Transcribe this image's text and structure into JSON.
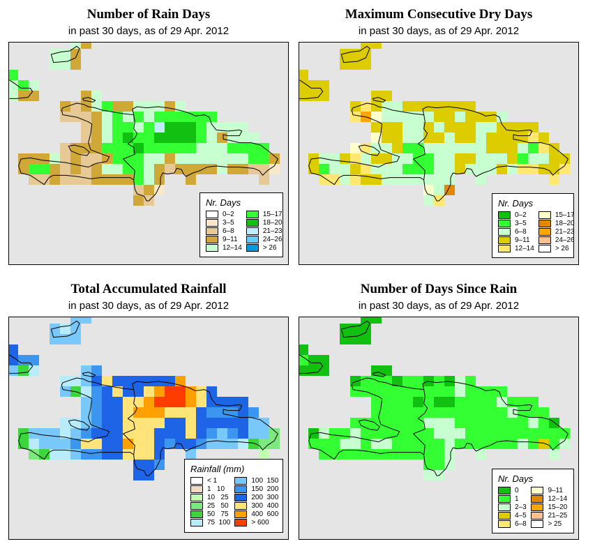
{
  "panels": [
    {
      "title": "Number of Rain Days",
      "subtitle": "in past 30 days, as of  29 Apr. 2012",
      "legend": {
        "title": "Nr. Days",
        "items": [
          {
            "label": "0–2",
            "color": "#ffffff"
          },
          {
            "label": "3–5",
            "color": "#f8e8cc"
          },
          {
            "label": "6–8",
            "color": "#e6c994"
          },
          {
            "label": "9–11",
            "color": "#d0a838"
          },
          {
            "label": "12–14",
            "color": "#c8ffd0"
          },
          {
            "label": "15–17",
            "color": "#33ff33"
          },
          {
            "label": "18–20",
            "color": "#11c011"
          },
          {
            "label": "21–23",
            "color": "#c0ecff"
          },
          {
            "label": "24–26",
            "color": "#66ccff"
          },
          {
            "label": "> 26",
            "color": "#0099dd"
          }
        ]
      },
      "grid": [
        "......43...................",
        "....443....................",
        "....443....................",
        "5..........................",
        "454........................",
        "433....34..................",
        ".....323453344434..........",
        ".....222345454555555.......",
        ".......2345545766654444....",
        ".......23456556666543444...",
        ".....23335556555554445555..",
        ".3334232235554434444444553.",
        ".3553232344554323333433221.",
        "..2232223333543..3......2..",
        "............231............",
        "............32............."
      ]
    },
    {
      "title": "Maximum Consecutive Dry Days",
      "subtitle": "in past 30 days, as of  29 Apr. 2012",
      "legend": {
        "title": "Nr. Days",
        "items": [
          {
            "label": "0–2",
            "color": "#11c011"
          },
          {
            "label": "3–5",
            "color": "#33ff33"
          },
          {
            "label": "6–8",
            "color": "#c8ffd0"
          },
          {
            "label": "9–11",
            "color": "#ddcc00"
          },
          {
            "label": "12–14",
            "color": "#ffe870"
          },
          {
            "label": "15–17",
            "color": "#ffffcc"
          },
          {
            "label": "18–20",
            "color": "#e08800"
          },
          {
            "label": "21–23",
            "color": "#ffa500"
          },
          {
            "label": "24–26",
            "color": "#ffc090"
          },
          {
            "label": "> 26",
            "color": "#ffffff"
          }
        ]
      },
      "grid": [
        "......33...................",
        "....333....................",
        "....333....................",
        "3..........................",
        "333........................",
        "333....33..................",
        ".....343223333333..........",
        ".....475222223323332.......",
        ".......3332232333223333....",
        ".......53322332332333343...",
        ".....54223112222223332143..",
        ".3223423322112233222312233.",
        ".3122342221112232223244334.",
        "..4424332222222..2......4..",
        "............526............",
        "............24............."
      ]
    },
    {
      "title": "Total Accumulated Rainfall",
      "subtitle": "in past 30 days, as of  29 Apr. 2012",
      "legend": {
        "title": "Rainfall (mm)",
        "items": [
          {
            "label": "< 1",
            "color": "#ffffff"
          },
          {
            "label": "1   10",
            "color": "#f0dcc0"
          },
          {
            "label": "10   25",
            "color": "#c0ffb0"
          },
          {
            "label": "25   50",
            "color": "#7de87d"
          },
          {
            "label": "50   75",
            "color": "#3cd63c"
          },
          {
            "label": "75  100",
            "color": "#b8ecfa"
          },
          {
            "label": "100  150",
            "color": "#78c8fa"
          },
          {
            "label": "150  200",
            "color": "#3c96f0"
          },
          {
            "label": "200  300",
            "color": "#1e64e6"
          },
          {
            "label": "300  400",
            "color": "#ffe47a"
          },
          {
            "label": "400  600",
            "color": "#ffa000"
          },
          {
            "label": "> 600",
            "color": "#ff3c00"
          }
        ]
      },
      "grid": [
        "......66...................",
        "....656....................",
        "....666....................",
        "8..........................",
        "877........................",
        "645....67..................",
        ".....55689888888A..........",
        ".....645789889ABBA98.......",
        ".......678899ABBBA98888....",
        ".......67889AAA999877787...",
        ".....55678899998898888866..",
        ".4666567888999888987678663.",
        ".4566679988A99878876665433.",
        "..3455677889998..6......2..",
        "............887............",
        "............88............."
      ]
    },
    {
      "title": "Number of Days Since Rain",
      "subtitle": "in past 30 days, as of  29 Apr. 2012",
      "legend": {
        "title": "Nr. Days",
        "items": [
          {
            "label": "0",
            "color": "#11c011"
          },
          {
            "label": "1",
            "color": "#33ff33"
          },
          {
            "label": "2–3",
            "color": "#c8ffd0"
          },
          {
            "label": "4–5",
            "color": "#ddcc00"
          },
          {
            "label": "6–8",
            "color": "#ffe870"
          },
          {
            "label": "9–11",
            "color": "#ffffcc"
          },
          {
            "label": "12–14",
            "color": "#e08800"
          },
          {
            "label": "15–20",
            "color": "#ffa500"
          },
          {
            "label": "21–25",
            "color": "#ffc090"
          },
          {
            "label": "> 25",
            "color": "#ffffff"
          }
        ]
      },
      "grid": [
        "......00...................",
        "....000....................",
        "....000....................",
        "0..........................",
        "100........................",
        "000....00..................",
        ".....011101101021..........",
        ".....111111111121111.......",
        ".......1111010011112111....",
        ".......11111111111112111...",
        ".....11111112221111111210..",
        ".0211211111112221111111111.",
        ".1112212211111211111121312.",
        "..1111111111112..2......2..",
        "............112............",
        "............22............."
      ]
    }
  ]
}
